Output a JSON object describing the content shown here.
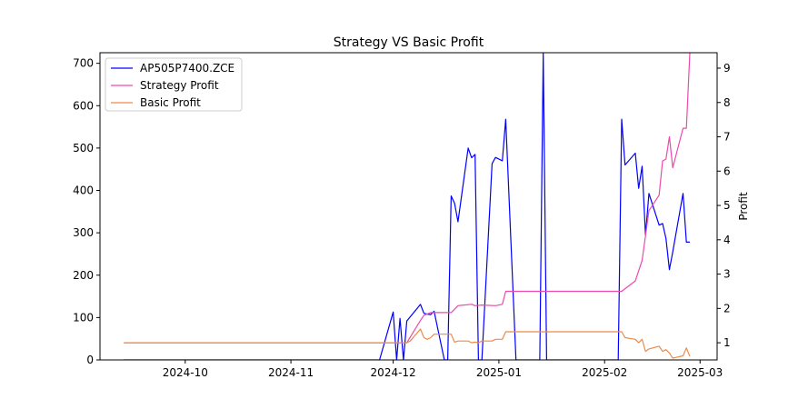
{
  "chart_data": {
    "type": "line",
    "title": "Strategy VS Basic Profit",
    "xlabel": "",
    "ylabel_left": "",
    "ylabel_right": "Profit",
    "x_ticks": [
      "2024-10",
      "2024-11",
      "2024-12",
      "2025-01",
      "2025-02",
      "2025-03"
    ],
    "x_tick_dates": [
      "2024-10-01",
      "2024-11-01",
      "2024-12-01",
      "2025-01-01",
      "2025-02-01",
      "2025-03-01"
    ],
    "xlim": [
      "2024-09-06",
      "2025-03-06"
    ],
    "ylim_left": [
      0,
      725
    ],
    "ylim_right": [
      0.5,
      9.45
    ],
    "left_ticks": [
      0,
      100,
      200,
      300,
      400,
      500,
      600,
      700
    ],
    "right_ticks": [
      1,
      2,
      3,
      4,
      5,
      6,
      7,
      8,
      9
    ],
    "legend_position": "upper-left",
    "grid": false,
    "series": [
      {
        "name": "AP505P7400.ZCE",
        "axis": "left",
        "color": "#0000ff",
        "x": [
          "2024-09-13",
          "2024-11-27",
          "2024-12-01",
          "2024-12-02",
          "2024-12-03",
          "2024-12-04",
          "2024-12-05",
          "2024-12-09",
          "2024-12-10",
          "2024-12-11",
          "2024-12-12",
          "2024-12-13",
          "2024-12-16",
          "2024-12-17",
          "2024-12-18",
          "2024-12-19",
          "2024-12-20",
          "2024-12-23",
          "2024-12-24",
          "2024-12-25",
          "2024-12-26",
          "2024-12-27",
          "2024-12-30",
          "2024-12-31",
          "2025-01-02",
          "2025-01-03",
          "2025-01-06",
          "2025-01-13",
          "2025-01-14",
          "2025-01-15",
          "2025-01-16",
          "2025-02-05",
          "2025-02-06",
          "2025-02-07",
          "2025-02-10",
          "2025-02-11",
          "2025-02-12",
          "2025-02-13",
          "2025-02-14",
          "2025-02-17",
          "2025-02-18",
          "2025-02-19",
          "2025-02-20",
          "2025-02-21",
          "2025-02-24",
          "2025-02-25",
          "2025-02-26"
        ],
        "y": [
          0,
          0,
          113,
          0,
          98,
          0,
          92,
          131,
          110,
          108,
          107,
          115,
          0,
          0,
          387,
          370,
          326,
          500,
          477,
          485,
          0,
          0,
          463,
          478,
          470,
          568,
          0,
          0,
          725,
          0,
          0,
          0,
          568,
          460,
          488,
          405,
          457,
          295,
          393,
          318,
          322,
          287,
          213,
          255,
          393,
          278,
          278
        ]
      },
      {
        "name": "Strategy Profit",
        "axis": "right",
        "color": "#ed4aad",
        "x": [
          "2024-09-13",
          "2024-12-05",
          "2024-12-09",
          "2024-12-10",
          "2024-12-12",
          "2024-12-13",
          "2024-12-18",
          "2024-12-20",
          "2024-12-24",
          "2024-12-25",
          "2024-12-27",
          "2024-12-31",
          "2025-01-02",
          "2025-01-03",
          "2025-02-05",
          "2025-02-06",
          "2025-02-10",
          "2025-02-12",
          "2025-02-14",
          "2025-02-17",
          "2025-02-18",
          "2025-02-19",
          "2025-02-20",
          "2025-02-21",
          "2025-02-24",
          "2025-02-25",
          "2025-02-26"
        ],
        "y": [
          1,
          1,
          1.65,
          1.8,
          1.88,
          1.88,
          1.88,
          2.08,
          2.12,
          2.08,
          2.1,
          2.08,
          2.12,
          2.5,
          2.5,
          2.5,
          2.8,
          3.4,
          4.85,
          5.3,
          6.3,
          6.35,
          7.0,
          6.1,
          7.25,
          7.25,
          9.45
        ]
      },
      {
        "name": "Basic Profit",
        "axis": "right",
        "color": "#ed8a4a",
        "x": [
          "2024-09-13",
          "2024-12-04",
          "2024-12-05",
          "2024-12-06",
          "2024-12-09",
          "2024-12-10",
          "2024-12-11",
          "2024-12-12",
          "2024-12-13",
          "2024-12-16",
          "2024-12-17",
          "2024-12-18",
          "2024-12-19",
          "2024-12-20",
          "2024-12-23",
          "2024-12-24",
          "2024-12-25",
          "2024-12-26",
          "2024-12-27",
          "2024-12-30",
          "2024-12-31",
          "2025-01-02",
          "2025-01-03",
          "2025-02-05",
          "2025-02-06",
          "2025-02-07",
          "2025-02-10",
          "2025-02-11",
          "2025-02-12",
          "2025-02-13",
          "2025-02-14",
          "2025-02-17",
          "2025-02-18",
          "2025-02-19",
          "2025-02-20",
          "2025-02-21",
          "2025-02-24",
          "2025-02-25",
          "2025-02-26"
        ],
        "y": [
          1,
          1,
          1,
          1.05,
          1.4,
          1.15,
          1.1,
          1.15,
          1.25,
          1.25,
          1.25,
          1.25,
          1.02,
          1.05,
          1.05,
          1.0,
          1.02,
          1.0,
          1.05,
          1.05,
          1.1,
          1.1,
          1.32,
          1.32,
          1.32,
          1.15,
          1.1,
          1.0,
          1.1,
          0.75,
          0.82,
          0.9,
          0.75,
          0.8,
          0.7,
          0.55,
          0.62,
          0.85,
          0.6
        ]
      }
    ]
  }
}
